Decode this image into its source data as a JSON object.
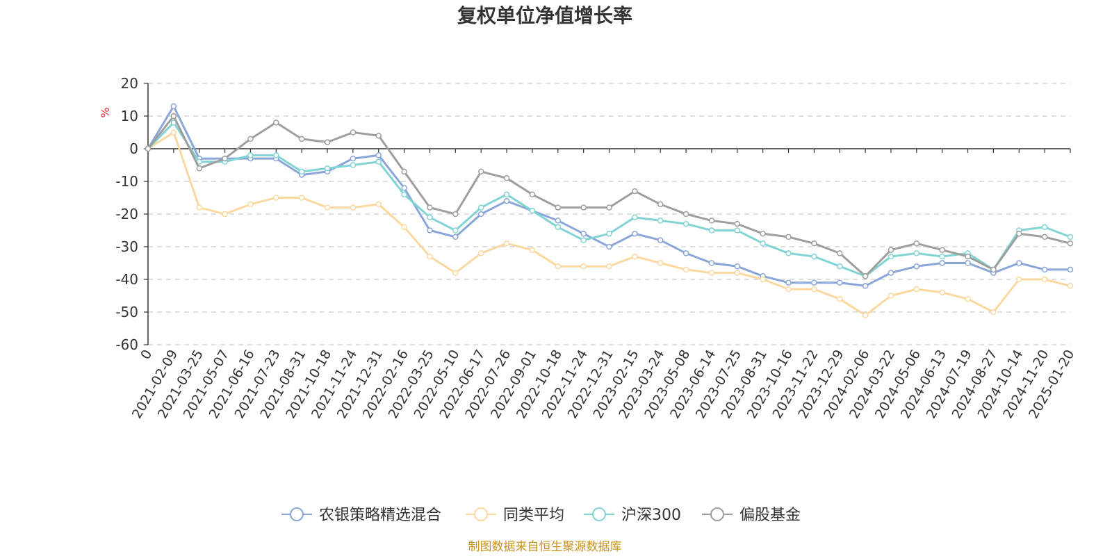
{
  "chart_data": {
    "type": "line",
    "title": "复权单位净值增长率",
    "ylabel": "%",
    "ylim": [
      -60,
      20
    ],
    "yticks": [
      20,
      10,
      0,
      -10,
      -20,
      -30,
      -40,
      -50,
      -60
    ],
    "grid": true,
    "legend_position": "bottom",
    "x": [
      "0",
      "2021-02-09",
      "2021-03-25",
      "2021-05-07",
      "2021-06-16",
      "2021-07-23",
      "2021-08-31",
      "2021-10-18",
      "2021-11-24",
      "2021-12-31",
      "2022-02-16",
      "2022-03-25",
      "2022-05-10",
      "2022-06-17",
      "2022-07-26",
      "2022-09-01",
      "2022-10-18",
      "2022-11-24",
      "2022-12-31",
      "2023-02-15",
      "2023-03-24",
      "2023-05-08",
      "2023-06-14",
      "2023-07-25",
      "2023-08-31",
      "2023-10-16",
      "2023-11-22",
      "2023-12-29",
      "2024-02-06",
      "2024-03-22",
      "2024-05-06",
      "2024-06-13",
      "2024-07-19",
      "2024-08-27",
      "2024-10-14",
      "2024-11-20",
      "2025-01-20"
    ],
    "series": [
      {
        "name": "农银策略精选混合",
        "color": "#8aa6d8",
        "values": [
          0,
          13,
          -3,
          -3,
          -3,
          -3,
          -8,
          -7,
          -3,
          -2,
          -12,
          -25,
          -27,
          -20,
          -16,
          -19,
          -22,
          -26,
          -30,
          -26,
          -28,
          -32,
          -35,
          -36,
          -39,
          -41,
          -41,
          -41,
          -42,
          -38,
          -36,
          -35,
          -35,
          -38,
          -35,
          -37,
          -37
        ]
      },
      {
        "name": "同类平均",
        "color": "#fad8a0",
        "values": [
          0,
          5,
          -18,
          -20,
          -17,
          -15,
          -15,
          -18,
          -18,
          -17,
          -24,
          -33,
          -38,
          -32,
          -29,
          -31,
          -36,
          -36,
          -36,
          -33,
          -35,
          -37,
          -38,
          -38,
          -40,
          -43,
          -43,
          -46,
          -51,
          -45,
          -43,
          -44,
          -46,
          -50,
          -40,
          -40,
          -42
        ]
      },
      {
        "name": "沪深300",
        "color": "#82d4d4",
        "values": [
          0,
          8,
          -4,
          -4,
          -2,
          -2,
          -7,
          -6,
          -5,
          -4,
          -14,
          -21,
          -25,
          -18,
          -14,
          -19,
          -24,
          -28,
          -26,
          -21,
          -22,
          -23,
          -25,
          -25,
          -29,
          -32,
          -33,
          -36,
          -39,
          -33,
          -32,
          -33,
          -32,
          -37,
          -25,
          -24,
          -27
        ]
      },
      {
        "name": "偏股基金",
        "color": "#9e9e9e",
        "values": [
          0,
          10,
          -6,
          -3,
          3,
          8,
          3,
          2,
          5,
          4,
          -7,
          -18,
          -20,
          -7,
          -9,
          -14,
          -18,
          -18,
          -18,
          -13,
          -17,
          -20,
          -22,
          -23,
          -26,
          -27,
          -29,
          -32,
          -39,
          -31,
          -29,
          -31,
          -33,
          -37,
          -26,
          -27,
          -29
        ]
      }
    ]
  },
  "footer": {
    "source": "制图数据来自恒生聚源数据库"
  }
}
